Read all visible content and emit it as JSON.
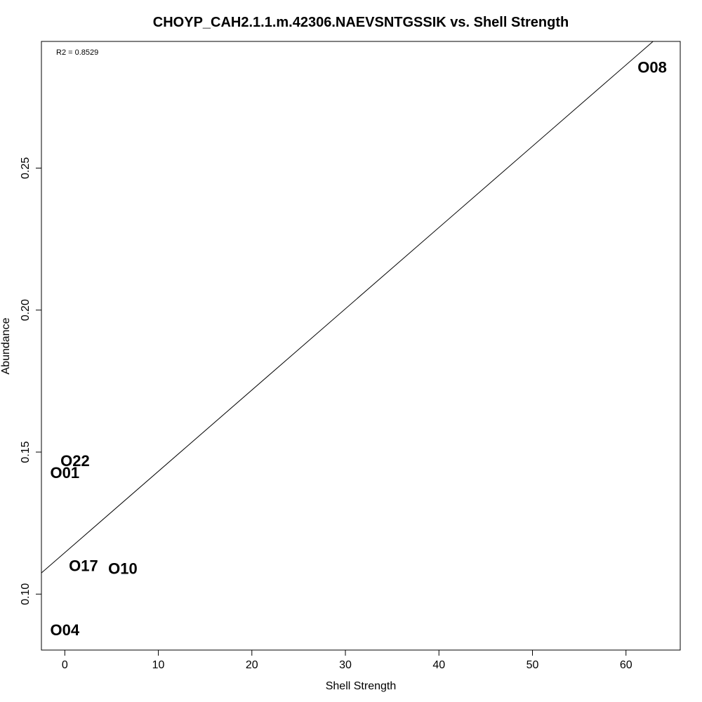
{
  "chart_data": {
    "type": "scatter",
    "title": "CHOYP_CAH2.1.1.m.42306.NAEVSNTGSSIK vs. Shell Strength",
    "xlabel": "Shell Strength",
    "ylabel": "Abundance",
    "annotation": "R2 = 0.8529",
    "xlim": [
      -2.5,
      65.8
    ],
    "ylim": [
      0.0803,
      0.2946
    ],
    "x_ticks": [
      0,
      10,
      20,
      30,
      40,
      50,
      60
    ],
    "y_ticks": [
      0.1,
      0.15,
      0.2,
      0.25
    ],
    "x_tick_labels": [
      "0",
      "10",
      "20",
      "30",
      "40",
      "50",
      "60"
    ],
    "y_tick_labels": [
      "0.10",
      "0.15",
      "0.20",
      "0.25"
    ],
    "grid": false,
    "points": [
      {
        "label": "O08",
        "x": 62.8,
        "y": 0.2854
      },
      {
        "label": "O22",
        "x": 1.1,
        "y": 0.1469
      },
      {
        "label": "O01",
        "x": 0.0,
        "y": 0.1427
      },
      {
        "label": "O17",
        "x": 2.0,
        "y": 0.11
      },
      {
        "label": "O10",
        "x": 6.2,
        "y": 0.109
      },
      {
        "label": "O04",
        "x": 0.0,
        "y": 0.0873
      }
    ],
    "fit_line": {
      "intercept": 0.1146,
      "slope": 0.002862
    }
  }
}
